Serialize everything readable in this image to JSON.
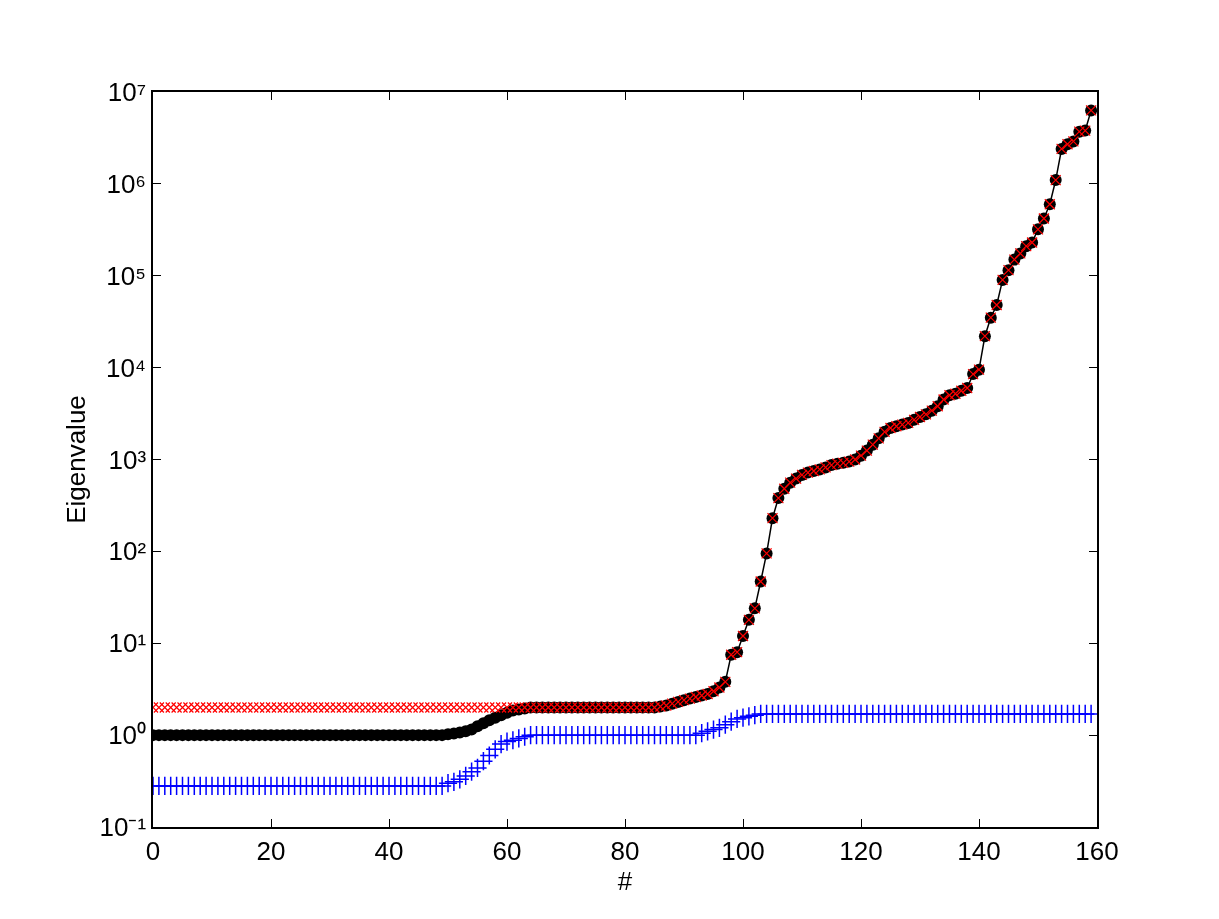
{
  "chart_data": {
    "type": "scatter",
    "xlabel": "#",
    "ylabel": "Eigenvalue",
    "log": "y",
    "grid": false,
    "xlim": [
      0,
      160
    ],
    "xticks": [
      0,
      20,
      40,
      60,
      80,
      100,
      120,
      140,
      160
    ],
    "ylim": [
      0.1,
      10000000
    ],
    "yticks": [
      {
        "value": 0.1,
        "label": "10⁻¹"
      },
      {
        "value": 1,
        "label": "10⁰"
      },
      {
        "value": 10,
        "label": "10¹"
      },
      {
        "value": 100,
        "label": "10²"
      },
      {
        "value": 1000,
        "label": "10³"
      },
      {
        "value": 10000,
        "label": "10⁴"
      },
      {
        "value": 100000,
        "label": "10⁵"
      },
      {
        "value": 1000000,
        "label": "10⁶"
      },
      {
        "value": 10000000,
        "label": "10⁷"
      }
    ],
    "x": [
      0,
      1,
      2,
      3,
      4,
      5,
      6,
      7,
      8,
      9,
      10,
      11,
      12,
      13,
      14,
      15,
      16,
      17,
      18,
      19,
      20,
      21,
      22,
      23,
      24,
      25,
      26,
      27,
      28,
      29,
      30,
      31,
      32,
      33,
      34,
      35,
      36,
      37,
      38,
      39,
      40,
      41,
      42,
      43,
      44,
      45,
      46,
      47,
      48,
      49,
      50,
      51,
      52,
      53,
      54,
      55,
      56,
      57,
      58,
      59,
      60,
      61,
      62,
      63,
      64,
      65,
      66,
      67,
      68,
      69,
      70,
      71,
      72,
      73,
      74,
      75,
      76,
      77,
      78,
      79,
      80,
      81,
      82,
      83,
      84,
      85,
      86,
      87,
      88,
      89,
      90,
      91,
      92,
      93,
      94,
      95,
      96,
      97,
      98,
      99,
      100,
      101,
      102,
      103,
      104,
      105,
      106,
      107,
      108,
      109,
      110,
      111,
      112,
      113,
      114,
      115,
      116,
      117,
      118,
      119,
      120,
      121,
      122,
      123,
      124,
      125,
      126,
      127,
      128,
      129,
      130,
      131,
      132,
      133,
      134,
      135,
      136,
      137,
      138,
      139,
      140,
      141,
      142,
      143,
      144,
      145,
      146,
      147,
      148,
      149,
      150,
      151,
      152,
      153,
      154,
      155,
      156,
      157,
      158,
      159
    ],
    "series": [
      {
        "type": "line",
        "color": "#000000",
        "marker": "circle",
        "line_style": "solid",
        "values": [
          1,
          1,
          1,
          1,
          1,
          1,
          1,
          1,
          1,
          1,
          1,
          1,
          1,
          1,
          1,
          1,
          1,
          1,
          1,
          1,
          1,
          1,
          1,
          1,
          1,
          1,
          1,
          1,
          1,
          1,
          1,
          1,
          1,
          1,
          1,
          1,
          1,
          1,
          1,
          1,
          1,
          1,
          1,
          1,
          1,
          1,
          1,
          1,
          1,
          1,
          1.02,
          1.04,
          1.07,
          1.1,
          1.15,
          1.25,
          1.35,
          1.45,
          1.55,
          1.65,
          1.75,
          1.85,
          1.9,
          1.95,
          2,
          2,
          2,
          2,
          2,
          2,
          2,
          2,
          2,
          2,
          2,
          2,
          2,
          2,
          2,
          2,
          2,
          2,
          2,
          2,
          2,
          2,
          2.05,
          2.1,
          2.2,
          2.3,
          2.4,
          2.5,
          2.6,
          2.7,
          2.8,
          3.0,
          3.3,
          3.8,
          7.5,
          8,
          12,
          18,
          24,
          47,
          95,
          230,
          380,
          480,
          560,
          620,
          680,
          720,
          750,
          780,
          820,
          870,
          900,
          920,
          950,
          1000,
          1100,
          1250,
          1450,
          1700,
          2000,
          2200,
          2300,
          2400,
          2500,
          2700,
          2900,
          3100,
          3400,
          3800,
          4500,
          5000,
          5200,
          5600,
          6000,
          8500,
          9500,
          22000,
          35000,
          48000,
          90000,
          115000,
          150000,
          175000,
          210000,
          230000,
          320000,
          420000,
          600000,
          1100000,
          2400000,
          2700000,
          2900000,
          3700000,
          3800000,
          6300000
        ]
      },
      {
        "color": "#ff0000",
        "marker": "cross",
        "line_style": "none",
        "values": [
          2,
          2,
          2,
          2,
          2,
          2,
          2,
          2,
          2,
          2,
          2,
          2,
          2,
          2,
          2,
          2,
          2,
          2,
          2,
          2,
          2,
          2,
          2,
          2,
          2,
          2,
          2,
          2,
          2,
          2,
          2,
          2,
          2,
          2,
          2,
          2,
          2,
          2,
          2,
          2,
          2,
          2,
          2,
          2,
          2,
          2,
          2,
          2,
          2,
          2,
          2,
          2,
          2,
          2,
          2,
          2,
          2,
          2,
          2,
          2,
          2,
          2,
          2,
          2,
          2,
          2,
          2,
          2,
          2,
          2,
          2,
          2,
          2,
          2,
          2,
          2,
          2,
          2,
          2,
          2,
          2,
          2,
          2,
          2,
          2,
          2,
          2.05,
          2.1,
          2.2,
          2.3,
          2.4,
          2.5,
          2.6,
          2.7,
          2.8,
          3.0,
          3.3,
          3.8,
          7.5,
          8,
          12,
          18,
          24,
          47,
          95,
          230,
          380,
          480,
          560,
          620,
          680,
          720,
          750,
          780,
          820,
          870,
          900,
          920,
          950,
          1000,
          1100,
          1250,
          1450,
          1700,
          2000,
          2200,
          2300,
          2400,
          2500,
          2700,
          2900,
          3100,
          3400,
          3800,
          4500,
          5000,
          5200,
          5600,
          6000,
          8500,
          9500,
          22000,
          35000,
          48000,
          90000,
          115000,
          150000,
          175000,
          210000,
          230000,
          320000,
          420000,
          600000,
          1100000,
          2400000,
          2700000,
          2900000,
          3700000,
          3800000,
          6300000
        ]
      },
      {
        "color": "#0000ff",
        "marker": "plus",
        "line_style": "none",
        "values": [
          0.28,
          0.28,
          0.28,
          0.28,
          0.28,
          0.28,
          0.28,
          0.28,
          0.28,
          0.28,
          0.28,
          0.28,
          0.28,
          0.28,
          0.28,
          0.28,
          0.28,
          0.28,
          0.28,
          0.28,
          0.28,
          0.28,
          0.28,
          0.28,
          0.28,
          0.28,
          0.28,
          0.28,
          0.28,
          0.28,
          0.28,
          0.28,
          0.28,
          0.28,
          0.28,
          0.28,
          0.28,
          0.28,
          0.28,
          0.28,
          0.28,
          0.28,
          0.28,
          0.28,
          0.28,
          0.28,
          0.28,
          0.28,
          0.28,
          0.28,
          0.3,
          0.31,
          0.33,
          0.36,
          0.4,
          0.44,
          0.52,
          0.6,
          0.7,
          0.8,
          0.85,
          0.88,
          0.92,
          0.96,
          1,
          1,
          1,
          1,
          1,
          1,
          1,
          1,
          1,
          1,
          1,
          1,
          1,
          1,
          1,
          1,
          1,
          1,
          1,
          1,
          1,
          1,
          1,
          1,
          1,
          1,
          1,
          1,
          1,
          1.05,
          1.1,
          1.15,
          1.2,
          1.3,
          1.4,
          1.5,
          1.55,
          1.6,
          1.65,
          1.7,
          1.7,
          1.7,
          1.7,
          1.7,
          1.7,
          1.7,
          1.7,
          1.7,
          1.7,
          1.7,
          1.7,
          1.7,
          1.7,
          1.7,
          1.7,
          1.7,
          1.7,
          1.7,
          1.7,
          1.7,
          1.7,
          1.7,
          1.7,
          1.7,
          1.7,
          1.7,
          1.7,
          1.7,
          1.7,
          1.7,
          1.7,
          1.7,
          1.7,
          1.7,
          1.7,
          1.7,
          1.7,
          1.7,
          1.7,
          1.7,
          1.7,
          1.7,
          1.7,
          1.7,
          1.7,
          1.7,
          1.7,
          1.7,
          1.7,
          1.7,
          1.7,
          1.7,
          1.7,
          1.7,
          1.7,
          1.7
        ]
      }
    ]
  }
}
